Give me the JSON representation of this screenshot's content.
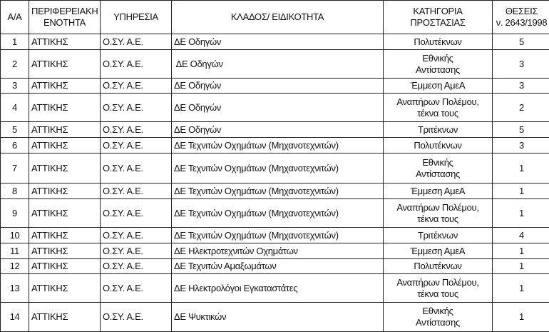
{
  "headers": {
    "aa": "Α/Α",
    "region_1": "ΠΕΡΙΦΕΡΕΙΑΚΗ",
    "region_2": "ΕΝΟΤΗΤΑ",
    "service": "ΥΠΗΡΕΣΙΑ",
    "specialty": "ΚΛΑΔΟΣ/ ΕΙΔΙΚΟΤΗΤΑ",
    "category_1": "ΚΑΤΗΓΟΡΙΑ",
    "category_2": "ΠΡΟΣΤΑΣΙΑΣ",
    "positions_1": "ΘΕΣΕΙΣ",
    "positions_2": "ν. 2643/1998"
  },
  "rows": [
    {
      "aa": "1",
      "region": "ΑΤΤΙΚΗΣ",
      "service": "Ο.ΣΥ. Α.Ε.",
      "specialty": "ΔΕ Οδηγών",
      "cat1": "Πολυτέκνων",
      "cat2": "",
      "positions": "5"
    },
    {
      "aa": "2",
      "region": "ΑΤΤΙΚΗΣ",
      "service": "Ο.ΣΥ. Α.Ε.",
      "specialty": " ΔΕ Οδηγών",
      "cat1": "Εθνικής",
      "cat2": "Αντίστασης",
      "positions": "3"
    },
    {
      "aa": "3",
      "region": "ΑΤΤΙΚΗΣ",
      "service": "Ο.ΣΥ. Α.Ε.",
      "specialty": "ΔΕ Οδηγών",
      "cat1": "Έμμεση ΑμεΑ",
      "cat2": "",
      "positions": "3"
    },
    {
      "aa": "4",
      "region": "ΑΤΤΙΚΗΣ",
      "service": "Ο.ΣΥ. Α.Ε.",
      "specialty": "ΔΕ Οδηγών",
      "cat1": "Αναπήρων Πολέμου,",
      "cat2": "τέκνα τους",
      "positions": "2"
    },
    {
      "aa": "5",
      "region": "ΑΤΤΙΚΗΣ",
      "service": "Ο.ΣΥ. Α.Ε.",
      "specialty": "ΔΕ Οδηγών",
      "cat1": "Τριτέκνων",
      "cat2": "",
      "positions": "5"
    },
    {
      "aa": "6",
      "region": "ΑΤΤΙΚΗΣ",
      "service": "Ο.ΣΥ. Α.Ε.",
      "specialty": "ΔΕ Τεχνιτών Οχημάτων (Μηχανοτεχνιτών)",
      "cat1": "Πολυτέκνων",
      "cat2": "",
      "positions": "3"
    },
    {
      "aa": "7",
      "region": "ΑΤΤΙΚΗΣ",
      "service": "Ο.ΣΥ. Α.Ε.",
      "specialty": "ΔΕ Τεχνιτών Οχημάτων (Μηχανοτεχνιτών)",
      "cat1": "Εθνικής",
      "cat2": "Αντίστασης",
      "positions": "1"
    },
    {
      "aa": "8",
      "region": "ΑΤΤΙΚΗΣ",
      "service": "Ο.ΣΥ. Α.Ε.",
      "specialty": "ΔΕ Τεχνιτών Οχημάτων (Μηχανοτεχνιτών)",
      "cat1": "Έμμεση ΑμεΑ",
      "cat2": "",
      "positions": "1"
    },
    {
      "aa": "9",
      "region": "ΑΤΤΙΚΗΣ",
      "service": "Ο.ΣΥ. Α.Ε.",
      "specialty": "ΔΕ Τεχνιτών Οχημάτων (Μηχανοτεχνιτών)",
      "cat1": "Αναπήρων Πολέμου,",
      "cat2": "τέκνα τους",
      "positions": "1"
    },
    {
      "aa": "10",
      "region": "ΑΤΤΙΚΗΣ",
      "service": "Ο.ΣΥ. Α.Ε.",
      "specialty": "ΔΕ Τεχνιτών Οχημάτων (Μηχανοτεχνιτών)",
      "cat1": "Τριτέκνων",
      "cat2": "",
      "positions": "4"
    },
    {
      "aa": "11",
      "region": "ΑΤΤΙΚΗΣ",
      "service": "Ο.ΣΥ. Α.Ε.",
      "specialty": "ΔΕ Ηλεκτροτεχνιτών Οχημάτων",
      "cat1": "Έμμεση ΑμεΑ",
      "cat2": "",
      "positions": "1"
    },
    {
      "aa": "12",
      "region": "ΑΤΤΙΚΗΣ",
      "service": "Ο.ΣΥ. Α.Ε.",
      "specialty": "ΔΕ Τεχνιτών Αμαξωμάτων",
      "cat1": "Πολυτέκνων",
      "cat2": "",
      "positions": "1"
    },
    {
      "aa": "13",
      "region": "ΑΤΤΙΚΗΣ",
      "service": "Ο.ΣΥ. Α.Ε.",
      "specialty": "ΔΕ Ηλεκτρολόγοι Εγκαταστάτες",
      "cat1": "Αναπήρων Πολέμου,",
      "cat2": "τέκνα τους",
      "positions": "1"
    },
    {
      "aa": "14",
      "region": "ΑΤΤΙΚΗΣ",
      "service": "Ο.ΣΥ. Α.Ε.",
      "specialty": "ΔΕ Ψυκτικών",
      "cat1": "Εθνικής",
      "cat2": "Αντίστασης",
      "positions": "1"
    }
  ]
}
